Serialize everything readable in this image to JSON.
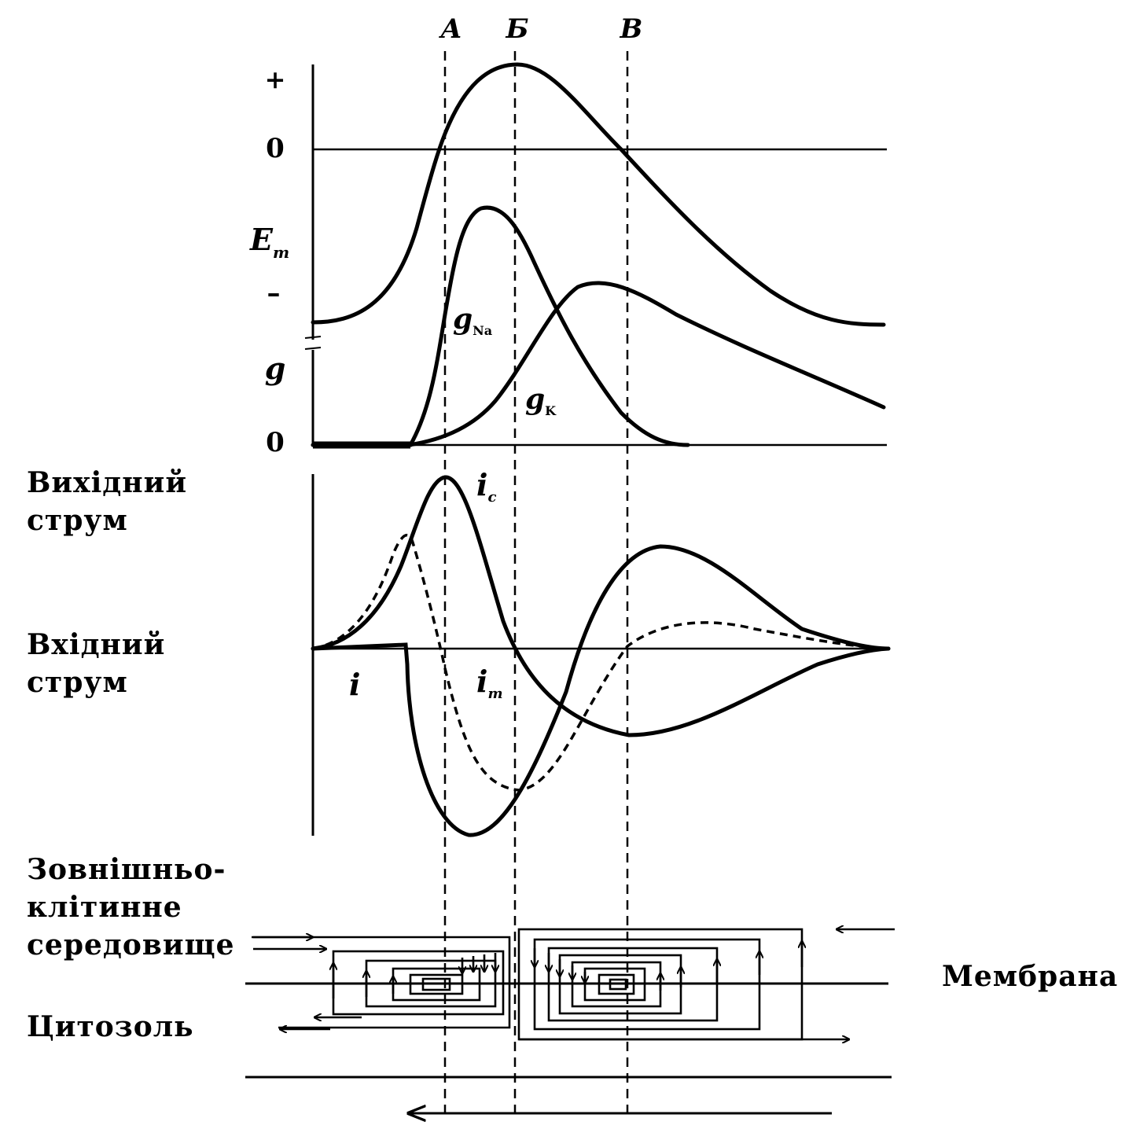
{
  "markers": [
    "A",
    "Б",
    "В"
  ],
  "axis_labels": {
    "plus": "+",
    "zero_em": "0",
    "em_main": "E",
    "em_sub": "m",
    "minus": "–",
    "g": "g",
    "zero_g": "0"
  },
  "curve_labels": {
    "gna_main": "g",
    "gna_sub": "Na",
    "gk_main": "g",
    "gk_sub": "K",
    "ic_main": "i",
    "ic_sub": "c",
    "im_main": "i",
    "im_sub": "m",
    "i_total": "i"
  },
  "side_labels": {
    "outward_current": [
      "Вихідний",
      "струм"
    ],
    "inward_current": [
      "Вхідний",
      "струм"
    ],
    "extracellular": [
      "Зовнішньо-",
      "клітинне",
      "середовище"
    ],
    "cytosol": "Цитозоль",
    "membrane": "Мембрана"
  }
}
